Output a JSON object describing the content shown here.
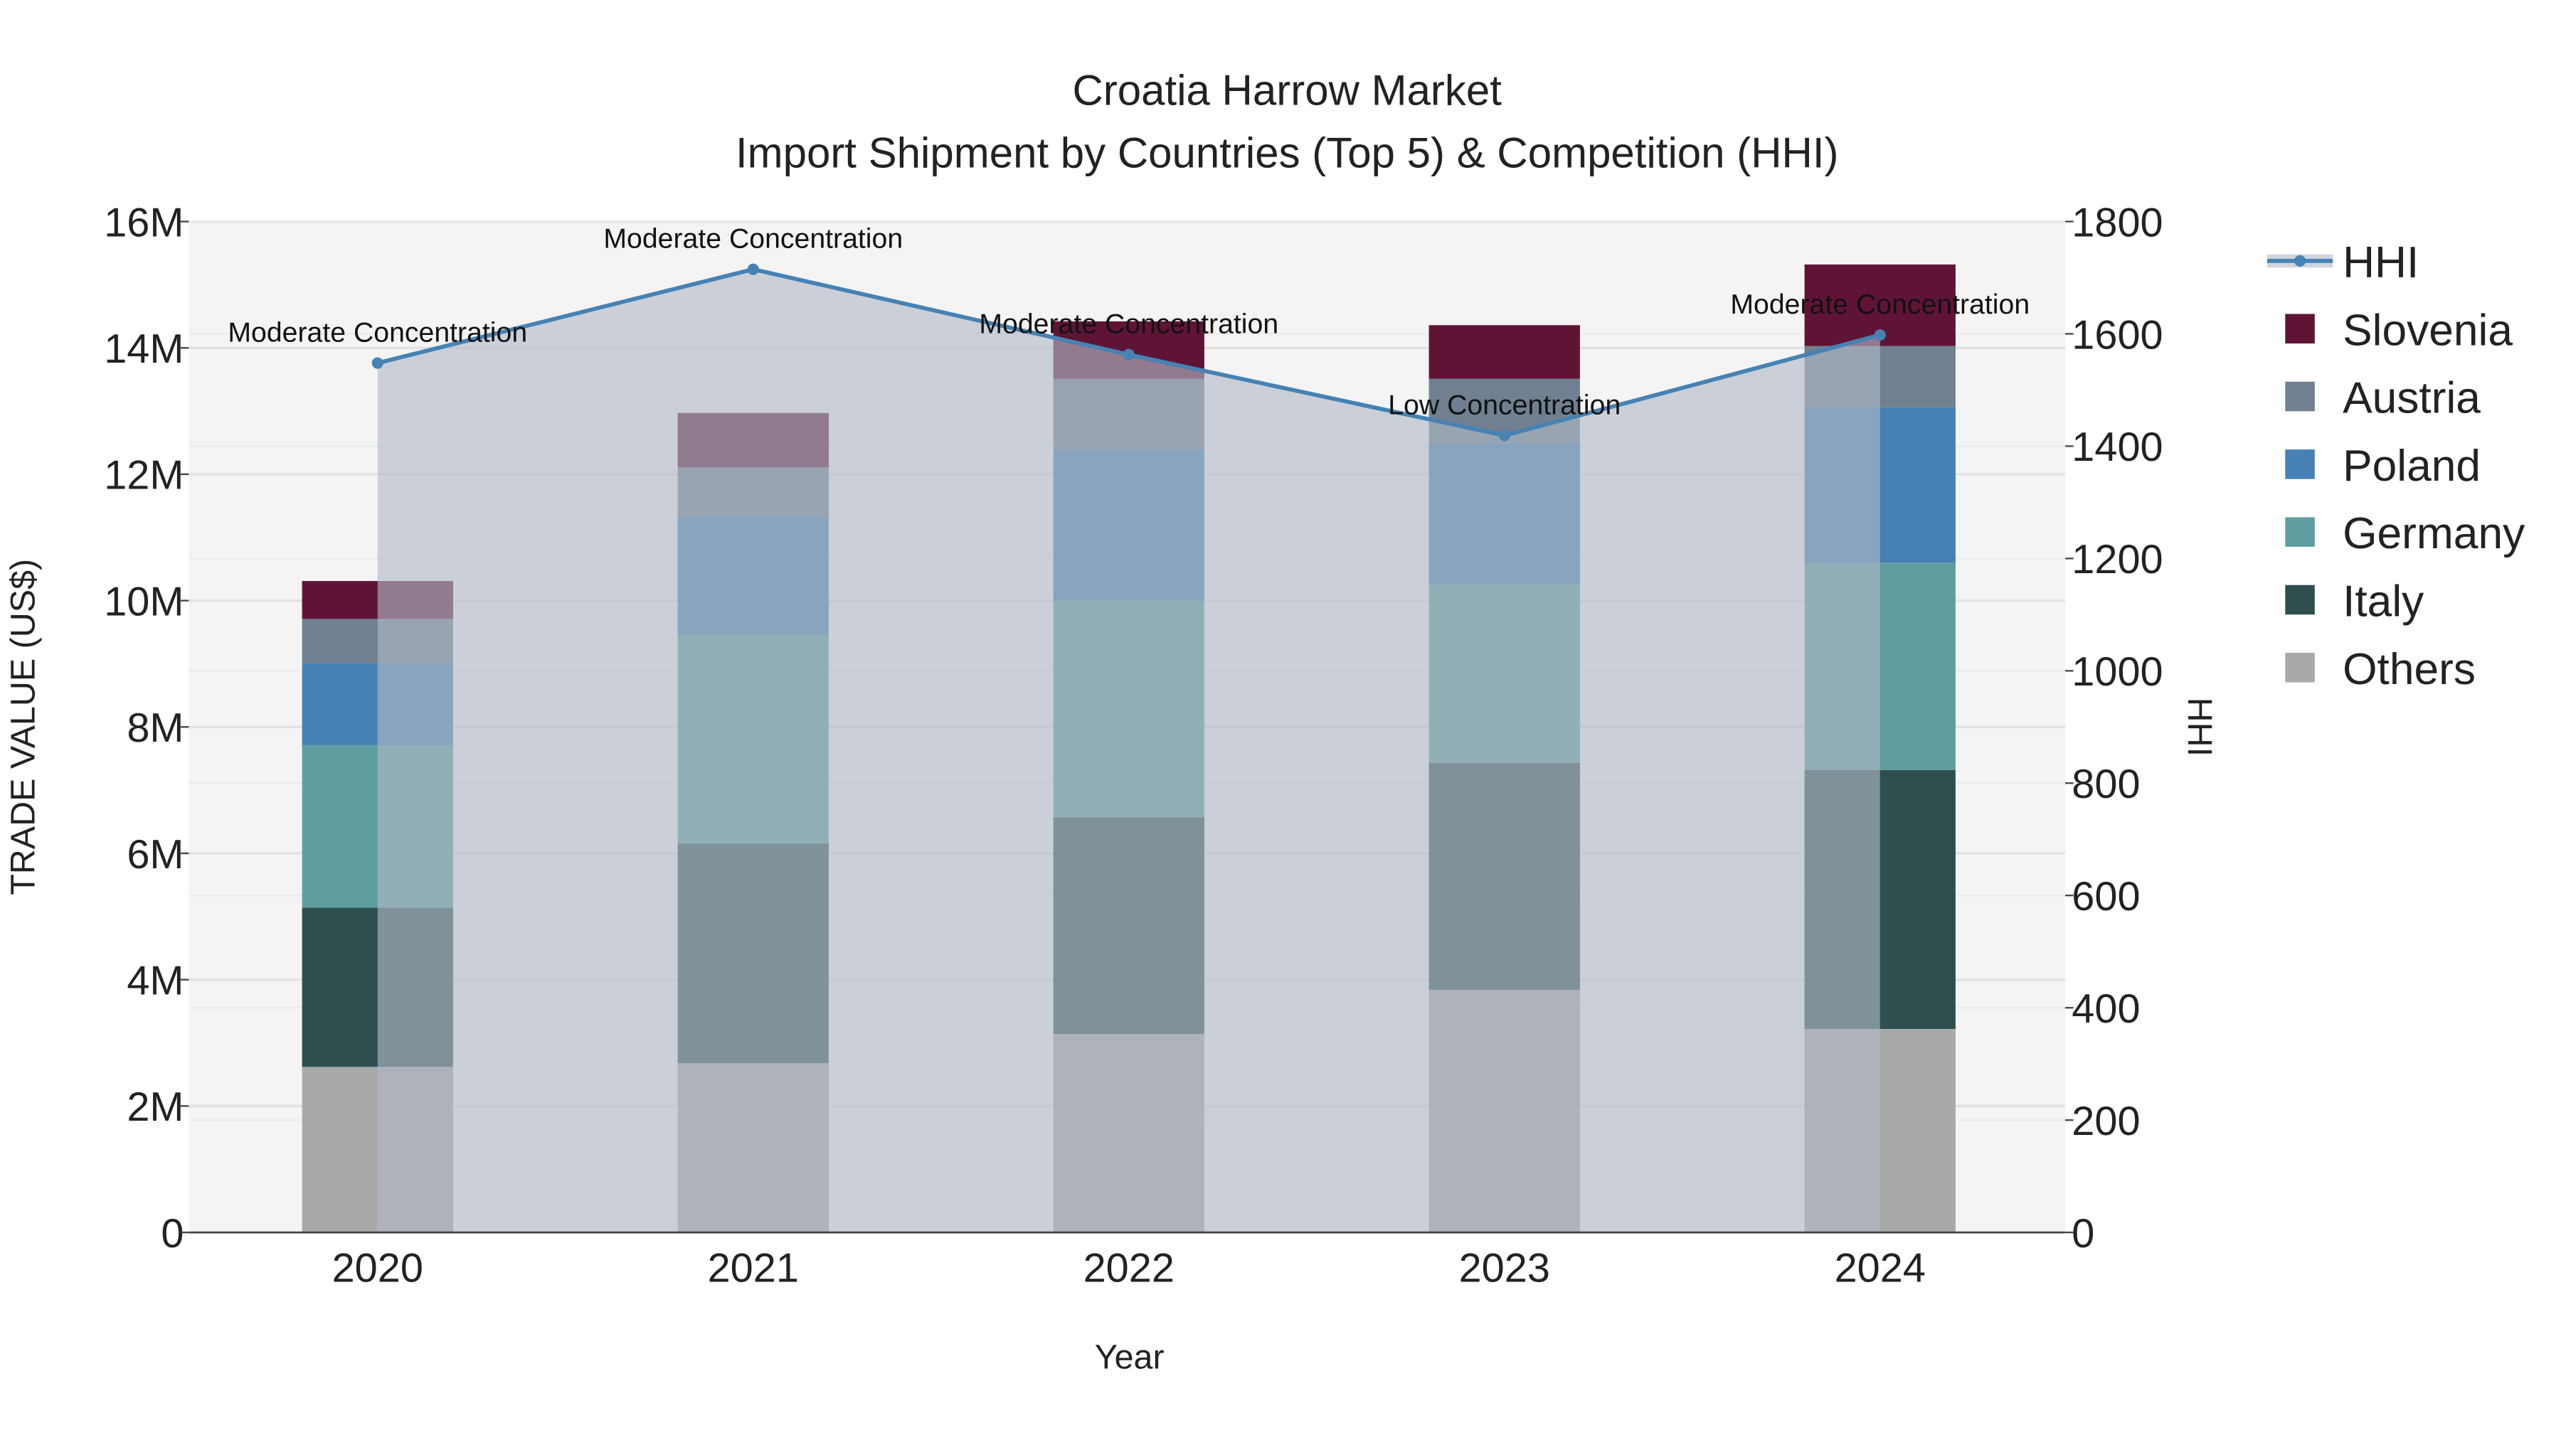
{
  "chart_data": {
    "type": "bar",
    "title": "Croatia Harrow Market",
    "subtitle": "Import Shipment by Countries (Top 5) & Competition (HHI)",
    "xlabel": "Year",
    "ylabel": "TRADE VALUE (US$)",
    "y2label": "HHI",
    "categories": [
      "2020",
      "2021",
      "2022",
      "2023",
      "2024"
    ],
    "ylim": [
      0,
      16000000
    ],
    "y_ticks": [
      0,
      2000000,
      4000000,
      6000000,
      8000000,
      10000000,
      12000000,
      14000000,
      16000000
    ],
    "y_tick_labels": [
      "0",
      "2M",
      "4M",
      "6M",
      "8M",
      "10M",
      "12M",
      "14M",
      "16M"
    ],
    "y2lim": [
      0,
      1800
    ],
    "y2_ticks": [
      0,
      200,
      400,
      600,
      800,
      1000,
      1200,
      1400,
      1600,
      1800
    ],
    "y2_tick_labels": [
      "0",
      "200",
      "400",
      "600",
      "800",
      "1000",
      "1200",
      "1400",
      "1600",
      "1800"
    ],
    "grid": true,
    "legend_position": "right",
    "stacked": true,
    "series": [
      {
        "name": "Others",
        "color": "#a9a9a9",
        "values": [
          2620000,
          2680000,
          3140000,
          3840000,
          3220000
        ]
      },
      {
        "name": "Italy",
        "color": "#2f4f4f",
        "values": [
          2520000,
          3480000,
          3430000,
          3590000,
          4100000
        ]
      },
      {
        "name": "Germany",
        "color": "#5f9ea0",
        "values": [
          2570000,
          3300000,
          3430000,
          2830000,
          3280000
        ]
      },
      {
        "name": "Poland",
        "color": "#4682b4",
        "values": [
          1300000,
          1870000,
          2390000,
          2230000,
          2460000
        ]
      },
      {
        "name": "Austria",
        "color": "#708090",
        "values": [
          700000,
          780000,
          1120000,
          1020000,
          970000
        ]
      },
      {
        "name": "Slovenia",
        "color": "#5f1436",
        "values": [
          600000,
          860000,
          910000,
          850000,
          1290000
        ]
      }
    ],
    "hhi": {
      "name": "HHI",
      "color": "#4682b4",
      "values": [
        1548,
        1715,
        1563,
        1419,
        1598
      ],
      "annotations": [
        "Moderate Concentration",
        "Moderate Concentration",
        "Moderate Concentration",
        "Low Concentration",
        "Moderate Concentration"
      ]
    },
    "legend": [
      "HHI",
      "Slovenia",
      "Austria",
      "Poland",
      "Germany",
      "Italy",
      "Others"
    ]
  }
}
